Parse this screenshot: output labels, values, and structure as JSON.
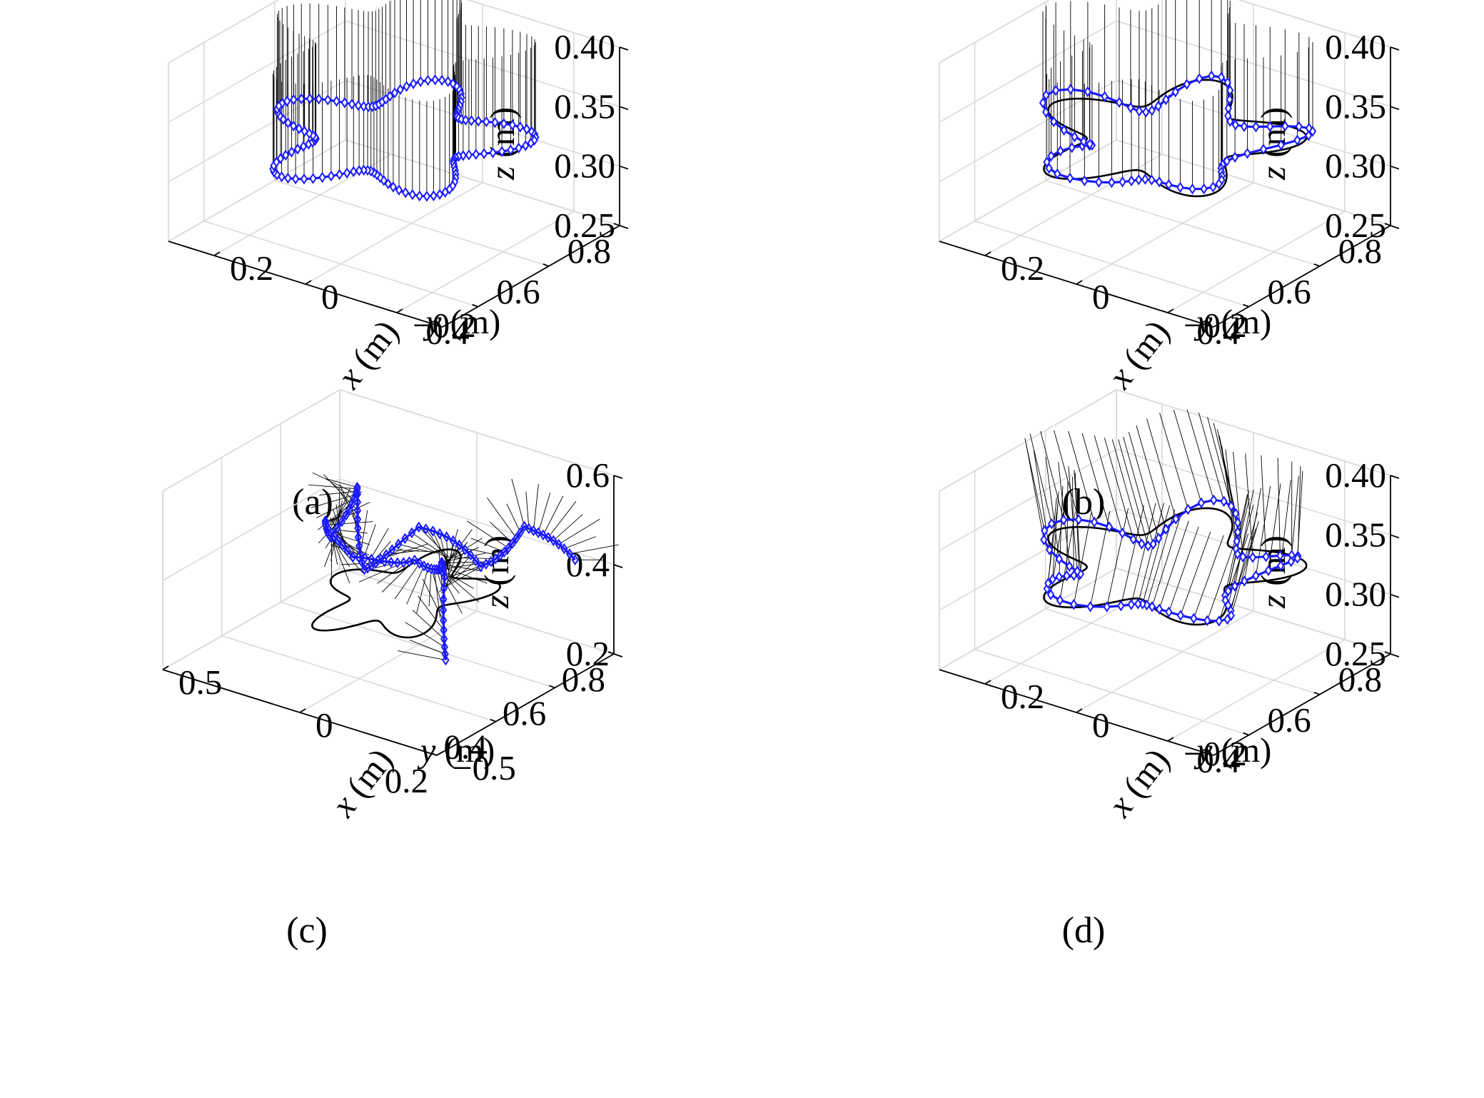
{
  "chart_data": [
    {
      "type": "scatter3d",
      "caption": "(a)",
      "xlabel": {
        "var": "x",
        "unit": " (m)"
      },
      "ylabel": {
        "var": "y",
        "unit": " (m)"
      },
      "zlabel": {
        "var": "z",
        "unit": " (m)"
      },
      "xlim": [
        -0.3,
        0.3
      ],
      "ylim": [
        0.3,
        0.8
      ],
      "zlim": [
        0.25,
        0.4
      ],
      "xticks": [
        -0.2,
        0,
        0.2
      ],
      "xtick_labels": [
        "−0.2",
        "0",
        "0.2"
      ],
      "yticks": [
        0.4,
        0.6,
        0.8
      ],
      "ytick_labels": [
        "0.4",
        "0.6",
        "0.8"
      ],
      "zticks": [
        0.25,
        0.3,
        0.35,
        0.4
      ],
      "ztick_labels": [
        "0.25",
        "0.30",
        "0.35",
        "0.40"
      ],
      "grid": true,
      "series": [
        {
          "role": "reference path",
          "color": "#000000",
          "shape": "star, 5 lobes",
          "center": [
            0.0,
            0.55
          ],
          "radius_mean": 0.19,
          "radius_amplitude": 0.055,
          "z": 0.33,
          "visible": false
        },
        {
          "role": "tracked path with orientation stems",
          "color": "#1a1aff",
          "marker": "diamond",
          "points": 130,
          "error": 0.0,
          "stem_top_z": 0.41
        }
      ]
    },
    {
      "type": "scatter3d",
      "caption": "(b)",
      "xlabel": {
        "var": "x",
        "unit": " (m)"
      },
      "ylabel": {
        "var": "y",
        "unit": " (m)"
      },
      "zlabel": {
        "var": "z",
        "unit": " (m)"
      },
      "xlim": [
        -0.3,
        0.3
      ],
      "ylim": [
        0.3,
        0.8
      ],
      "zlim": [
        0.25,
        0.4
      ],
      "xticks": [
        -0.2,
        0,
        0.2
      ],
      "xtick_labels": [
        "−0.2",
        "0",
        "0.2"
      ],
      "yticks": [
        0.4,
        0.6,
        0.8
      ],
      "ytick_labels": [
        "0.4",
        "0.6",
        "0.8"
      ],
      "zticks": [
        0.25,
        0.3,
        0.35,
        0.4
      ],
      "ztick_labels": [
        "0.25",
        "0.30",
        "0.35",
        "0.40"
      ],
      "grid": true,
      "series": [
        {
          "role": "reference path",
          "color": "#000000",
          "shape": "star, 5 lobes",
          "center": [
            0.0,
            0.55
          ],
          "radius_mean": 0.19,
          "radius_amplitude": 0.055,
          "z": 0.33,
          "visible": true
        },
        {
          "role": "tracked path with orientation stems",
          "color": "#1a1aff",
          "marker": "diamond",
          "points": 75,
          "error": 0.012,
          "stem_top_z": 0.41
        }
      ]
    },
    {
      "type": "scatter3d",
      "caption": "(c)",
      "xlabel": {
        "var": "x",
        "unit": " (m)"
      },
      "ylabel": {
        "var": "y",
        "unit": " (m)"
      },
      "zlabel": {
        "var": "z",
        "unit": " (m)"
      },
      "xlim": [
        -0.5,
        0.5
      ],
      "ylim": [
        0.2,
        0.8
      ],
      "zlim": [
        0.2,
        0.6
      ],
      "xticks": [
        -0.5,
        0,
        0.5
      ],
      "xtick_labels": [
        "−0.5",
        "0",
        "0.5"
      ],
      "yticks": [
        0.2,
        0.4,
        0.6,
        0.8
      ],
      "ytick_labels": [
        "0.2",
        "0.4",
        "0.6",
        "0.8"
      ],
      "zticks": [
        0.2,
        0.4,
        0.6
      ],
      "ztick_labels": [
        "0.2",
        "0.4",
        "0.6"
      ],
      "grid": true,
      "series": [
        {
          "role": "reference path",
          "color": "#000000",
          "shape": "star, 5 lobes",
          "center": [
            0.0,
            0.55
          ],
          "radius_mean": 0.19,
          "radius_amplitude": 0.055,
          "z": 0.33,
          "visible": true
        },
        {
          "role": "tracked path (unstable)",
          "color": "#1a1aff",
          "marker": "diamond",
          "points": 120
        }
      ]
    },
    {
      "type": "scatter3d",
      "caption": "(d)",
      "xlabel": {
        "var": "x",
        "unit": " (m)"
      },
      "ylabel": {
        "var": "y",
        "unit": " (m)"
      },
      "zlabel": {
        "var": "z",
        "unit": " (m)"
      },
      "xlim": [
        -0.3,
        0.3
      ],
      "ylim": [
        0.3,
        0.8
      ],
      "zlim": [
        0.25,
        0.4
      ],
      "xticks": [
        -0.2,
        0,
        0.2
      ],
      "xtick_labels": [
        "−0.2",
        "0",
        "0.2"
      ],
      "yticks": [
        0.4,
        0.6,
        0.8
      ],
      "ytick_labels": [
        "0.4",
        "0.6",
        "0.8"
      ],
      "zticks": [
        0.25,
        0.3,
        0.35,
        0.4
      ],
      "ztick_labels": [
        "0.25",
        "0.30",
        "0.35",
        "0.40"
      ],
      "grid": true,
      "series": [
        {
          "role": "reference path",
          "color": "#000000",
          "shape": "star, 5 lobes",
          "center": [
            0.0,
            0.55
          ],
          "radius_mean": 0.19,
          "radius_amplitude": 0.055,
          "z": 0.33,
          "visible": true
        },
        {
          "role": "tracked path with orientation stems",
          "color": "#1a1aff",
          "marker": "diamond",
          "points": 75,
          "error": 0.015,
          "stem_top_z": 0.41
        }
      ]
    }
  ]
}
